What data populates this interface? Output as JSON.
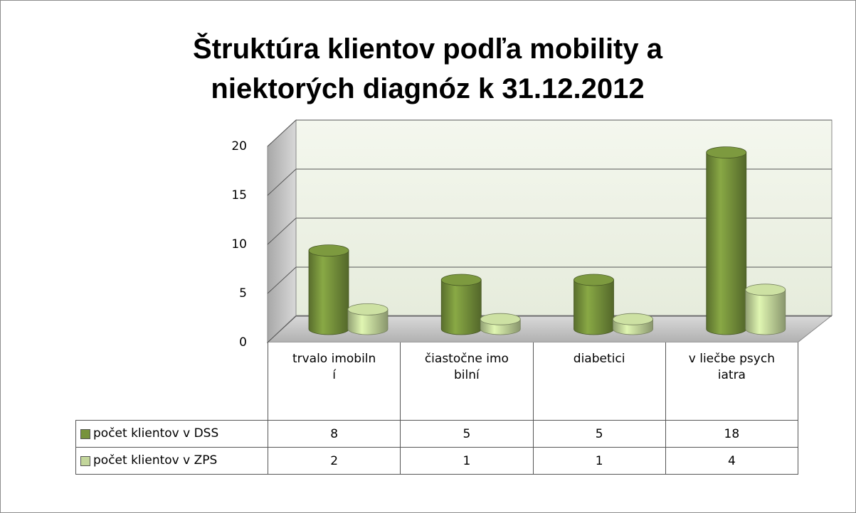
{
  "chart_data": {
    "type": "bar3d",
    "title": "Štruktúra klientov podľa mobility a niektorých diagnóz k  31.12.2012",
    "categories": [
      "trvalo imobilní",
      "čiastočne imobilní",
      "diabetici",
      "v liečbe psychiatra"
    ],
    "series": [
      {
        "name": "počet klientov v DSS",
        "color": "#77933c",
        "values": [
          8,
          5,
          5,
          18
        ]
      },
      {
        "name": "počet klientov v ZPS",
        "color": "#c3d69b",
        "values": [
          2,
          1,
          1,
          4
        ]
      }
    ],
    "ylim": [
      0,
      20
    ],
    "yticks": [
      0,
      5,
      10,
      15,
      20
    ],
    "grid": true,
    "data_table": true
  }
}
